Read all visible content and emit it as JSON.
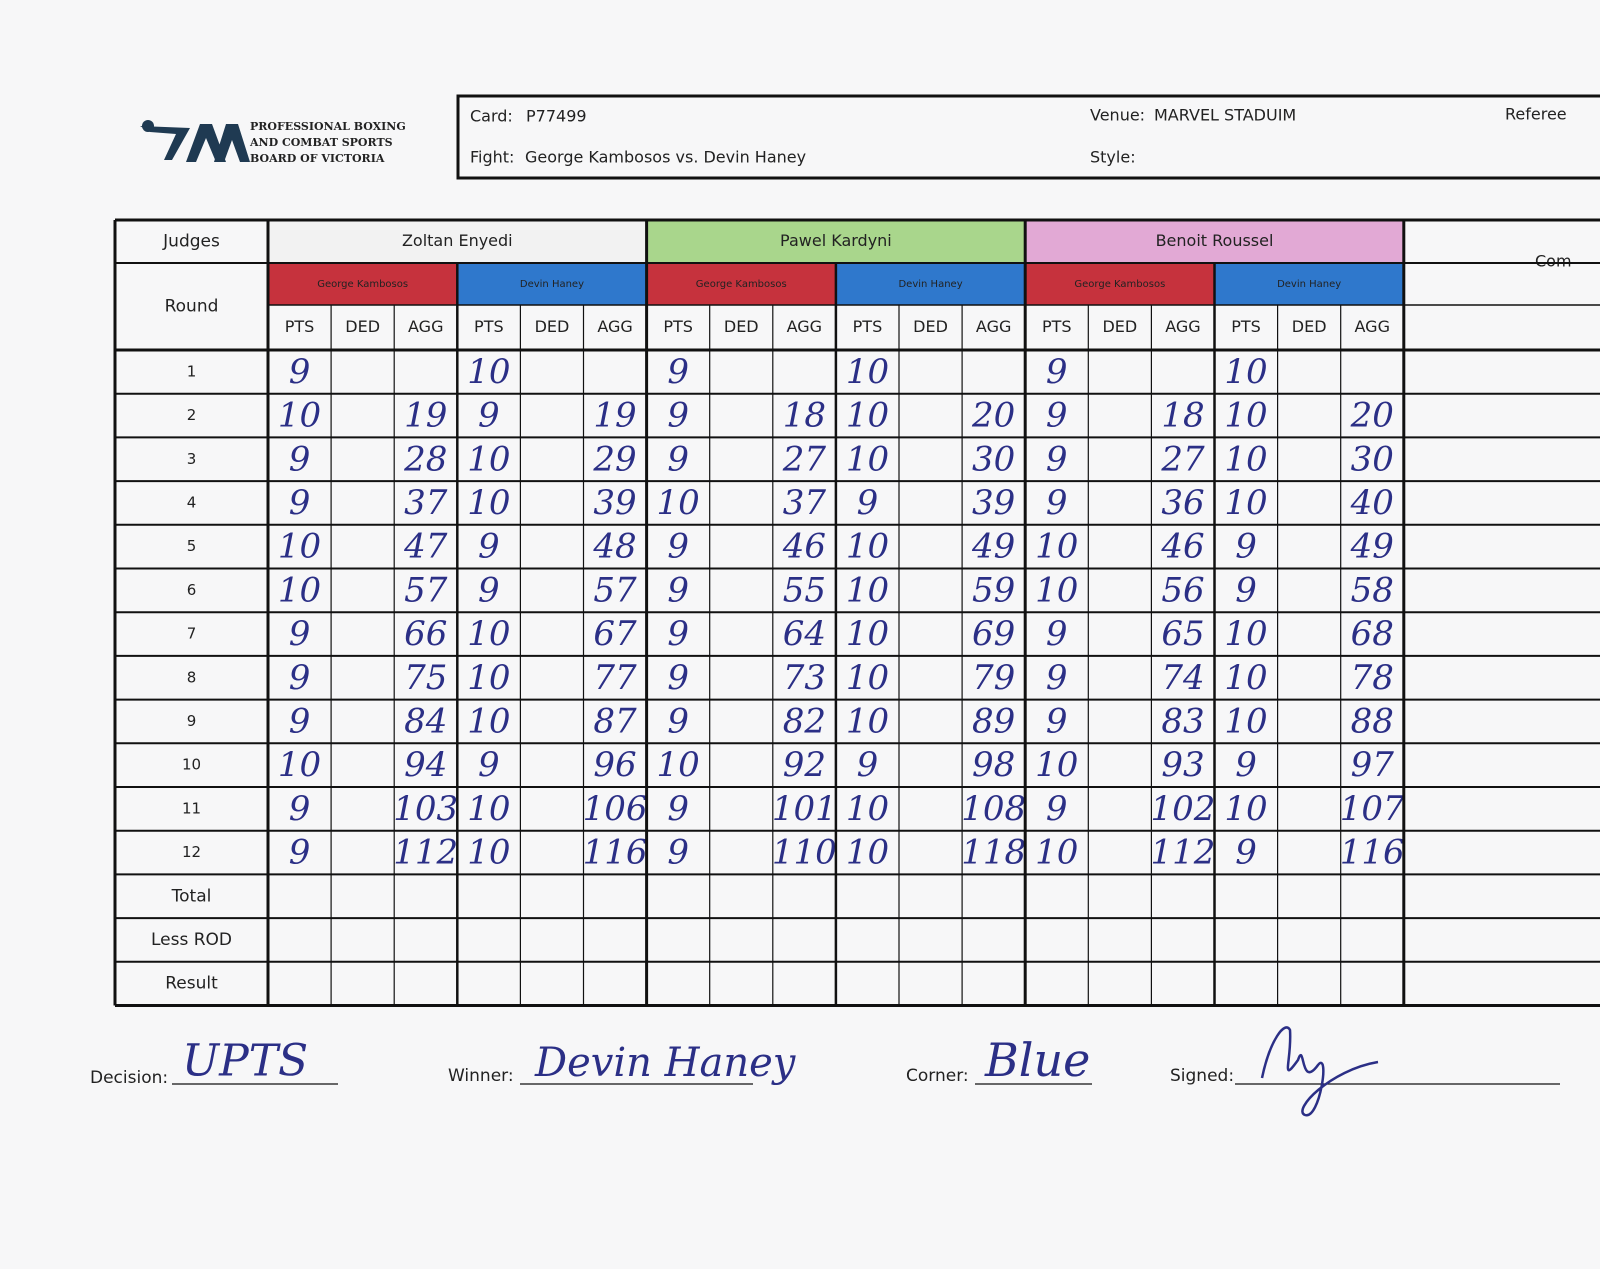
{
  "header": {
    "org": [
      "PROFESSIONAL BOXING",
      "AND COMBAT SPORTS",
      "BOARD OF VICTORIA"
    ],
    "card_label": "Card:",
    "card": "P77499",
    "venue_label": "Venue:",
    "venue": "MARVEL STADUIM",
    "referee_label": "Referee",
    "fight_label": "Fight:",
    "fight": "George Kambosos vs. Devin Haney",
    "style_label": "Style:"
  },
  "table": {
    "judges_label": "Judges",
    "round_label": "Round",
    "extra_label": "Com",
    "judges": [
      {
        "name": "Zoltan Enyedi",
        "color": "#f2f2f2"
      },
      {
        "name": "Pawel Kardyni",
        "color": "#a9d68c"
      },
      {
        "name": "Benoit Roussel",
        "color": "#e2a9d5"
      }
    ],
    "corners": [
      {
        "name": "George Kambosos",
        "color": "#c6323d"
      },
      {
        "name": "Devin Haney",
        "color": "#2f78cc"
      }
    ],
    "columns": [
      "PTS",
      "DED",
      "AGG"
    ],
    "rows": [
      {
        "round": 1,
        "scores": [
          9,
          null,
          null,
          10,
          null,
          null,
          9,
          null,
          null,
          10,
          null,
          null,
          9,
          null,
          null,
          10,
          null,
          null
        ]
      },
      {
        "round": 2,
        "scores": [
          10,
          null,
          19,
          9,
          null,
          19,
          9,
          null,
          18,
          10,
          null,
          20,
          9,
          null,
          18,
          10,
          null,
          20
        ]
      },
      {
        "round": 3,
        "scores": [
          9,
          null,
          28,
          10,
          null,
          29,
          9,
          null,
          27,
          10,
          null,
          30,
          9,
          null,
          27,
          10,
          null,
          30
        ]
      },
      {
        "round": 4,
        "scores": [
          9,
          null,
          37,
          10,
          null,
          39,
          10,
          null,
          37,
          9,
          null,
          39,
          9,
          null,
          36,
          10,
          null,
          40
        ]
      },
      {
        "round": 5,
        "scores": [
          10,
          null,
          47,
          9,
          null,
          48,
          9,
          null,
          46,
          10,
          null,
          49,
          10,
          null,
          46,
          9,
          null,
          49
        ]
      },
      {
        "round": 6,
        "scores": [
          10,
          null,
          57,
          9,
          null,
          57,
          9,
          null,
          55,
          10,
          null,
          59,
          10,
          null,
          56,
          9,
          null,
          58
        ]
      },
      {
        "round": 7,
        "scores": [
          9,
          null,
          66,
          10,
          null,
          67,
          9,
          null,
          64,
          10,
          null,
          69,
          9,
          null,
          65,
          10,
          null,
          68
        ]
      },
      {
        "round": 8,
        "scores": [
          9,
          null,
          75,
          10,
          null,
          77,
          9,
          null,
          73,
          10,
          null,
          79,
          9,
          null,
          74,
          10,
          null,
          78
        ]
      },
      {
        "round": 9,
        "scores": [
          9,
          null,
          84,
          10,
          null,
          87,
          9,
          null,
          82,
          10,
          null,
          89,
          9,
          null,
          83,
          10,
          null,
          88
        ]
      },
      {
        "round": 10,
        "scores": [
          10,
          null,
          94,
          9,
          null,
          96,
          10,
          null,
          92,
          9,
          null,
          98,
          10,
          null,
          93,
          9,
          null,
          97
        ]
      },
      {
        "round": 11,
        "scores": [
          9,
          null,
          103,
          10,
          null,
          106,
          9,
          null,
          101,
          10,
          null,
          108,
          9,
          null,
          102,
          10,
          null,
          107
        ]
      },
      {
        "round": 12,
        "scores": [
          9,
          null,
          112,
          10,
          null,
          116,
          9,
          null,
          110,
          10,
          null,
          118,
          10,
          null,
          112,
          9,
          null,
          116
        ]
      }
    ],
    "footer_rows": [
      "Total",
      "Less ROD",
      "Result"
    ]
  },
  "footer": {
    "decision_label": "Decision:",
    "decision": "UPTS",
    "winner_label": "Winner:",
    "winner": "Devin Haney",
    "corner_label": "Corner:",
    "corner": "Blue",
    "signed_label": "Signed:"
  }
}
